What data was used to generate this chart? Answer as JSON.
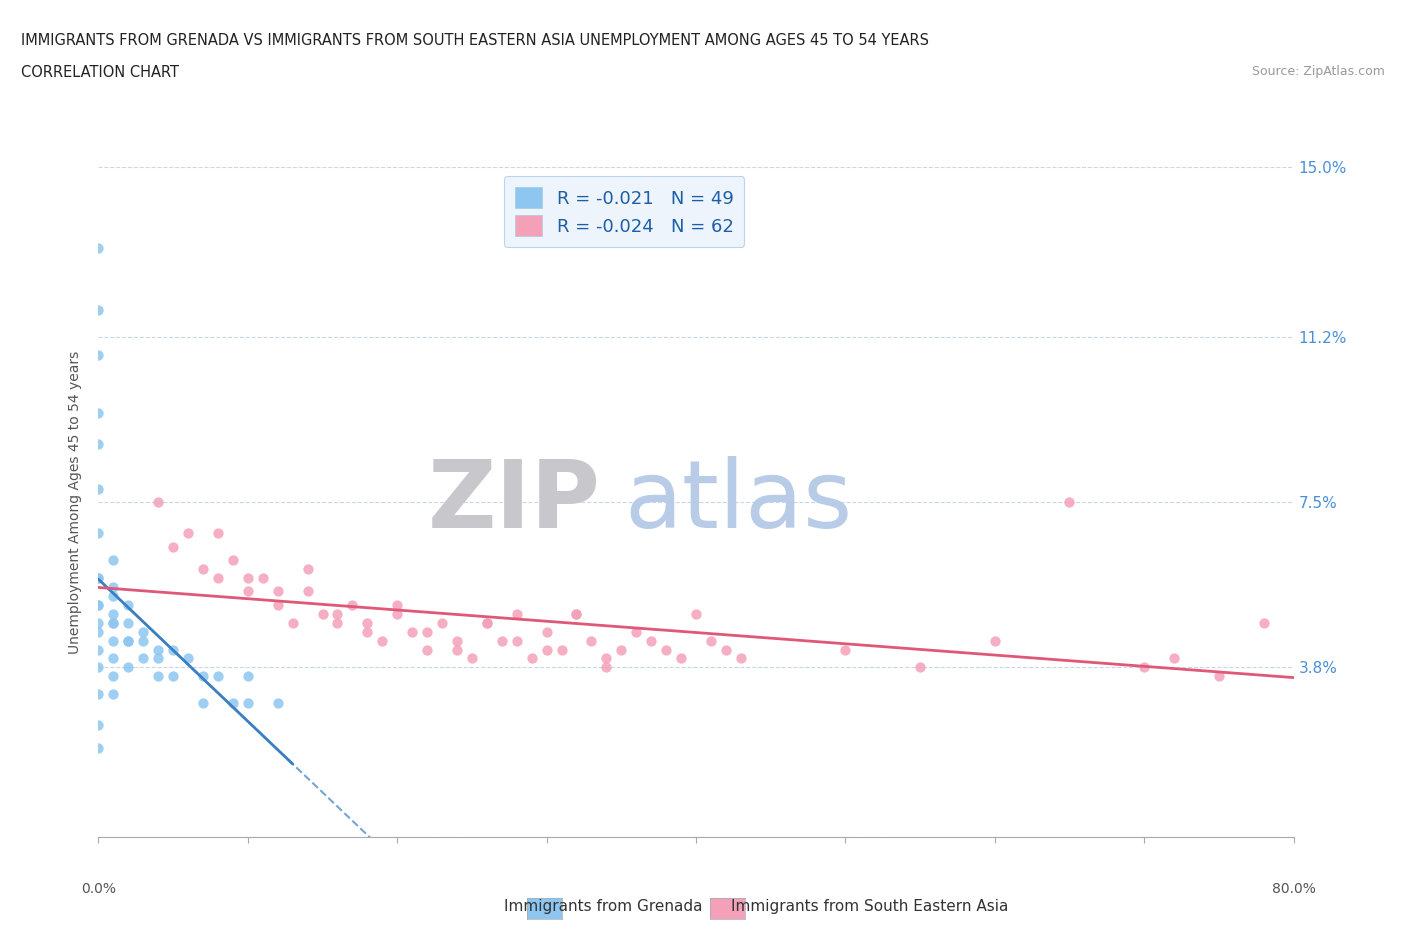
{
  "title_line1": "IMMIGRANTS FROM GRENADA VS IMMIGRANTS FROM SOUTH EASTERN ASIA UNEMPLOYMENT AMONG AGES 45 TO 54 YEARS",
  "title_line2": "CORRELATION CHART",
  "source_text": "Source: ZipAtlas.com",
  "ylabel": "Unemployment Among Ages 45 to 54 years",
  "xmin": 0.0,
  "xmax": 0.8,
  "ymin": 0.0,
  "ymax": 0.15,
  "yticks": [
    0.0,
    0.038,
    0.075,
    0.112,
    0.15
  ],
  "ytick_labels": [
    "",
    "3.8%",
    "7.5%",
    "11.2%",
    "15.0%"
  ],
  "xticks": [
    0.0,
    0.1,
    0.2,
    0.3,
    0.4,
    0.5,
    0.6,
    0.7,
    0.8
  ],
  "xtick_labels": [
    "0.0%",
    "",
    "",
    "",
    "",
    "",
    "",
    "",
    "80.0%"
  ],
  "grenada_color": "#8dc6f0",
  "sea_color": "#f4a0b8",
  "grenada_trendline_color": "#3a7fc1",
  "sea_trendline_color": "#e05878",
  "grenada_R": -0.021,
  "grenada_N": 49,
  "sea_R": -0.024,
  "sea_N": 62,
  "watermark_zip_color": "#c8c8cc",
  "watermark_atlas_color": "#b8cce8",
  "background_color": "#ffffff",
  "grid_color": "#c8d8e8",
  "legend_box_color": "#eaf2fb",
  "right_tick_color": "#4a90d9",
  "grenada_scatter_x": [
    0.0,
    0.0,
    0.0,
    0.0,
    0.0,
    0.0,
    0.0,
    0.0,
    0.0,
    0.0,
    0.0,
    0.0,
    0.0,
    0.0,
    0.0,
    0.01,
    0.01,
    0.01,
    0.01,
    0.01,
    0.01,
    0.01,
    0.01,
    0.02,
    0.02,
    0.02,
    0.02,
    0.03,
    0.03,
    0.04,
    0.04,
    0.05,
    0.05,
    0.06,
    0.07,
    0.07,
    0.08,
    0.09,
    0.1,
    0.1,
    0.12,
    0.0,
    0.0,
    0.0,
    0.01,
    0.01,
    0.02,
    0.03,
    0.04
  ],
  "grenada_scatter_y": [
    0.132,
    0.118,
    0.108,
    0.095,
    0.088,
    0.078,
    0.068,
    0.058,
    0.052,
    0.048,
    0.042,
    0.038,
    0.032,
    0.025,
    0.02,
    0.062,
    0.056,
    0.05,
    0.048,
    0.044,
    0.04,
    0.036,
    0.032,
    0.052,
    0.048,
    0.044,
    0.038,
    0.046,
    0.04,
    0.042,
    0.036,
    0.042,
    0.036,
    0.04,
    0.036,
    0.03,
    0.036,
    0.03,
    0.036,
    0.03,
    0.03,
    0.058,
    0.052,
    0.046,
    0.054,
    0.048,
    0.044,
    0.044,
    0.04
  ],
  "sea_scatter_x": [
    0.04,
    0.05,
    0.06,
    0.07,
    0.08,
    0.09,
    0.1,
    0.11,
    0.12,
    0.13,
    0.14,
    0.15,
    0.16,
    0.17,
    0.18,
    0.19,
    0.2,
    0.21,
    0.22,
    0.23,
    0.24,
    0.25,
    0.26,
    0.27,
    0.28,
    0.29,
    0.3,
    0.31,
    0.32,
    0.33,
    0.34,
    0.35,
    0.36,
    0.37,
    0.38,
    0.39,
    0.4,
    0.41,
    0.42,
    0.43,
    0.08,
    0.1,
    0.12,
    0.14,
    0.16,
    0.18,
    0.2,
    0.22,
    0.24,
    0.26,
    0.28,
    0.3,
    0.32,
    0.34,
    0.5,
    0.55,
    0.6,
    0.65,
    0.7,
    0.72,
    0.75,
    0.78
  ],
  "sea_scatter_y": [
    0.075,
    0.065,
    0.068,
    0.06,
    0.058,
    0.062,
    0.055,
    0.058,
    0.052,
    0.048,
    0.055,
    0.05,
    0.048,
    0.052,
    0.046,
    0.044,
    0.05,
    0.046,
    0.042,
    0.048,
    0.044,
    0.04,
    0.048,
    0.044,
    0.05,
    0.04,
    0.046,
    0.042,
    0.05,
    0.044,
    0.04,
    0.042,
    0.046,
    0.044,
    0.042,
    0.04,
    0.05,
    0.044,
    0.042,
    0.04,
    0.068,
    0.058,
    0.055,
    0.06,
    0.05,
    0.048,
    0.052,
    0.046,
    0.042,
    0.048,
    0.044,
    0.042,
    0.05,
    0.038,
    0.042,
    0.038,
    0.044,
    0.075,
    0.038,
    0.04,
    0.036,
    0.048
  ]
}
